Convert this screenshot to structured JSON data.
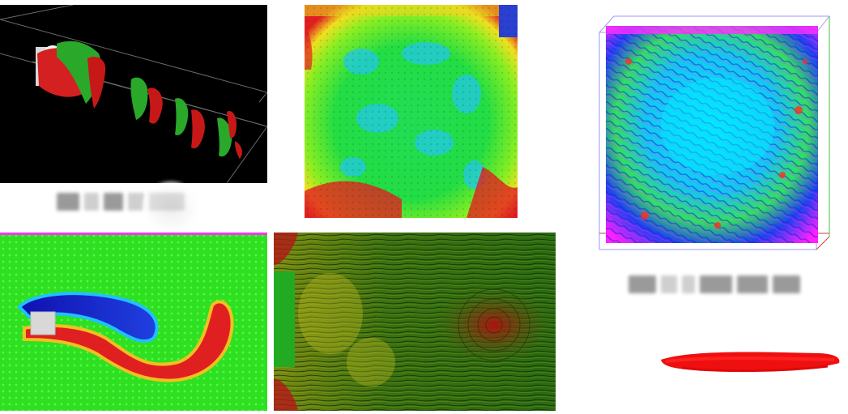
{
  "figure": {
    "panels": [
      {
        "id": "vortex-3d",
        "desc_color": "#000000"
      },
      {
        "id": "cavity-flow",
        "desc_color": "#22dd22"
      },
      {
        "id": "turbulence-cube",
        "desc_color": "#00ddff"
      },
      {
        "id": "cylinder-wake",
        "desc_color": "#22dd22"
      },
      {
        "id": "lic-streamlines",
        "desc_color": "#2a6a10"
      }
    ],
    "colors": {
      "red": "#e01a1a",
      "green": "#22dd22",
      "blue": "#1020c0",
      "cyan": "#00e5ff",
      "yellow": "#f0e020",
      "magenta": "#ff00ff",
      "black": "#000000"
    }
  }
}
